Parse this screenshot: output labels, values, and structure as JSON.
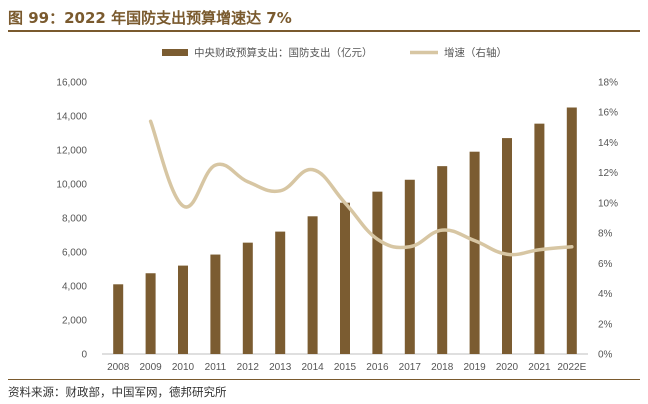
{
  "title": "图 99：2022 年国防支出预算增速达 7%",
  "source": "资料来源：财政部，中国军网，德邦研究所",
  "colors": {
    "bar": "#7b5c31",
    "line": "#d7c6a3",
    "accent": "#7a5a2e"
  },
  "chart_data": {
    "type": "bar",
    "categories": [
      "2008",
      "2009",
      "2010",
      "2011",
      "2012",
      "2013",
      "2014",
      "2015",
      "2016",
      "2017",
      "2018",
      "2019",
      "2020",
      "2021",
      "2022E"
    ],
    "series": [
      {
        "name": "中央财政预算支出：国防支出（亿元）",
        "type": "bar",
        "axis": "left",
        "values": [
          4100,
          4750,
          5200,
          5850,
          6550,
          7200,
          8100,
          8900,
          9550,
          10250,
          11050,
          11900,
          12700,
          13550,
          14500
        ]
      },
      {
        "name": "增速（右轴）",
        "type": "line",
        "axis": "right",
        "values": [
          null,
          15.4,
          9.8,
          12.5,
          11.4,
          10.8,
          12.2,
          10.0,
          7.6,
          7.1,
          8.2,
          7.5,
          6.6,
          6.9,
          7.1
        ]
      }
    ],
    "y_left": {
      "ylim": [
        0,
        16000
      ],
      "ticks": [
        "0",
        "2,000",
        "4,000",
        "6,000",
        "8,000",
        "10,000",
        "12,000",
        "14,000",
        "16,000"
      ]
    },
    "y_right": {
      "ylim": [
        0,
        18
      ],
      "ticks": [
        "0%",
        "2%",
        "4%",
        "6%",
        "8%",
        "10%",
        "12%",
        "14%",
        "16%",
        "18%"
      ]
    },
    "legend_position": "top",
    "grid": false
  }
}
